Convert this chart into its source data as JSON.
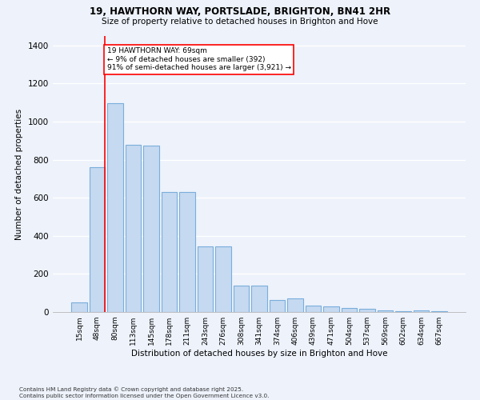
{
  "title": "19, HAWTHORN WAY, PORTSLADE, BRIGHTON, BN41 2HR",
  "subtitle": "Size of property relative to detached houses in Brighton and Hove",
  "xlabel": "Distribution of detached houses by size in Brighton and Hove",
  "ylabel": "Number of detached properties",
  "footnote": "Contains HM Land Registry data © Crown copyright and database right 2025.\nContains public sector information licensed under the Open Government Licence v3.0.",
  "categories": [
    "15sqm",
    "48sqm",
    "80sqm",
    "113sqm",
    "145sqm",
    "178sqm",
    "211sqm",
    "243sqm",
    "276sqm",
    "308sqm",
    "341sqm",
    "374sqm",
    "406sqm",
    "439sqm",
    "471sqm",
    "504sqm",
    "537sqm",
    "569sqm",
    "602sqm",
    "634sqm",
    "667sqm"
  ],
  "values": [
    50,
    760,
    1095,
    880,
    875,
    630,
    630,
    345,
    345,
    140,
    140,
    65,
    70,
    35,
    30,
    20,
    15,
    10,
    5,
    10,
    5
  ],
  "bar_color": "#c5d9f0",
  "bar_edge_color": "#7aaedb",
  "bg_color": "#edf2fb",
  "grid_color": "#ffffff",
  "annotation_text": "19 HAWTHORN WAY: 69sqm\n← 9% of detached houses are smaller (392)\n91% of semi-detached houses are larger (3,921) →",
  "vline_x_idx": 1.43,
  "ylim": [
    0,
    1450
  ],
  "yticks": [
    0,
    200,
    400,
    600,
    800,
    1000,
    1200,
    1400
  ]
}
